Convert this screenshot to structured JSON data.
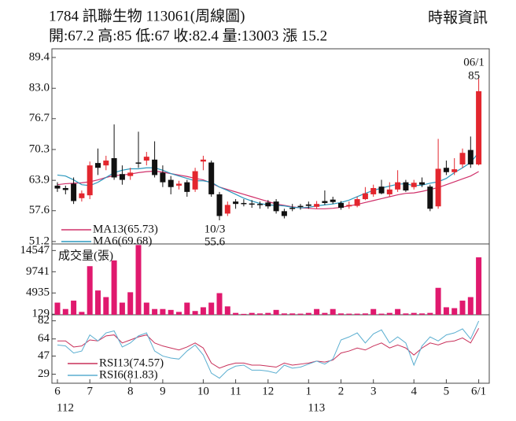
{
  "header": {
    "title": "1784  訊聯生物 113061(周線圖)",
    "subtitle": "開:67.2 高:85 低:67 收:82.4 量:13003 漲 15.2",
    "source": "時報資訊"
  },
  "chart_data": [
    {
      "type": "candlestick",
      "up_color": "#e3262e",
      "down_color": "#111111",
      "open": [
        62.8,
        62.3,
        63.2,
        60.2,
        60.8,
        67.5,
        67.0,
        68.5,
        65.2,
        64.8,
        67.6,
        68.0,
        68.2,
        65.5,
        64.0,
        62.8,
        63.5,
        62.0,
        67.8,
        67.6,
        61.0,
        57.0,
        59.5,
        59.2,
        59.1,
        59.0,
        59.3,
        59.5,
        57.5,
        58.2,
        58.6,
        58.9,
        58.4,
        59.6,
        59.9,
        59.2,
        58.5,
        58.6,
        60.0,
        61.0,
        62.6,
        61.0,
        62.0,
        63.5,
        62.5,
        63.5,
        62.6,
        58.5,
        66.5,
        65.6,
        67.2,
        70.2,
        67.2
      ],
      "high": [
        63.5,
        62.8,
        64.5,
        61.8,
        67.8,
        70.5,
        69.0,
        75.5,
        67.0,
        66.5,
        74.0,
        69.8,
        72.0,
        67.0,
        64.8,
        63.8,
        64.0,
        66.5,
        69.0,
        68.0,
        61.5,
        59.5,
        60.0,
        60.0,
        59.8,
        59.5,
        59.8,
        60.0,
        58.0,
        59.0,
        59.0,
        59.5,
        59.6,
        61.8,
        60.5,
        59.6,
        59.5,
        60.5,
        62.5,
        63.0,
        64.0,
        63.5,
        66.0,
        64.0,
        64.0,
        64.5,
        63.0,
        72.5,
        68.0,
        68.5,
        70.5,
        73.0,
        85
      ],
      "low": [
        61.5,
        61.0,
        59.0,
        59.5,
        60.0,
        65.0,
        66.0,
        64.0,
        63.0,
        64.0,
        66.5,
        67.0,
        64.5,
        62.5,
        61.0,
        62.0,
        60.5,
        61.5,
        66.0,
        60.5,
        55.6,
        56.5,
        58.0,
        58.5,
        58.2,
        58.0,
        58.0,
        57.0,
        56.0,
        57.5,
        57.8,
        58.0,
        58.0,
        58.8,
        59.0,
        57.8,
        58.0,
        58.3,
        59.8,
        60.5,
        61.0,
        60.5,
        61.5,
        61.5,
        62.0,
        62.5,
        57.5,
        58.0,
        65.0,
        65.0,
        66.5,
        66.5,
        67
      ],
      "close": [
        62.2,
        61.9,
        59.6,
        61.2,
        67.0,
        66.5,
        68.0,
        64.5,
        64.0,
        65.5,
        67.4,
        68.8,
        65.0,
        63.5,
        62.5,
        63.2,
        61.5,
        65.8,
        68.2,
        61.0,
        56.5,
        58.8,
        59.0,
        59.0,
        58.9,
        58.8,
        58.5,
        57.5,
        56.5,
        58.0,
        58.4,
        58.6,
        59.0,
        59.2,
        59.4,
        58.2,
        58.8,
        60.0,
        61.2,
        62.3,
        61.2,
        62.0,
        63.5,
        61.8,
        63.4,
        63.0,
        58.0,
        66.3,
        65.6,
        66.2,
        69.6,
        67.2,
        82.4
      ],
      "series": [
        {
          "name": "MA13(65.73)",
          "color": "#d0306a",
          "values": [
            63.0,
            63.2,
            63.3,
            63.4,
            63.6,
            64.0,
            64.5,
            64.9,
            65.0,
            65.2,
            65.5,
            65.7,
            65.8,
            65.6,
            65.3,
            65.0,
            64.7,
            64.3,
            64.0,
            63.3,
            62.5,
            62.0,
            61.5,
            61.0,
            60.5,
            60.0,
            59.5,
            59.0,
            58.7,
            58.4,
            58.2,
            58.1,
            58.0,
            58.0,
            58.1,
            58.3,
            58.6,
            58.9,
            59.3,
            59.7,
            60.1,
            60.5,
            60.9,
            61.2,
            61.3,
            61.6,
            62.0,
            62.4,
            63.0,
            63.6,
            64.2,
            64.8,
            65.73
          ]
        },
        {
          "name": "MA6(69.68)",
          "color": "#2a98bd",
          "values": [
            65.0,
            64.8,
            64.0,
            63.0,
            62.8,
            63.5,
            64.5,
            65.5,
            66.0,
            66.3,
            66.3,
            66.5,
            66.5,
            66.0,
            65.3,
            64.8,
            64.3,
            63.8,
            63.8,
            63.5,
            62.5,
            61.8,
            61.0,
            60.2,
            59.6,
            59.1,
            58.8,
            58.7,
            58.6,
            58.3,
            58.2,
            58.3,
            58.6,
            58.8,
            59.0,
            59.3,
            59.8,
            60.5,
            61.2,
            61.8,
            62.3,
            62.7,
            63.1,
            63.2,
            62.8,
            62.9,
            63.3,
            63.6,
            64.3,
            65.5,
            66.5,
            67.6,
            69.68
          ]
        }
      ],
      "ylim": [
        50.7,
        91.2
      ],
      "yticks": [
        89.4,
        {
          "value": 83.0,
          "label": "83.0"
        },
        76.7,
        70.3,
        63.9,
        57.6,
        51.2
      ],
      "annotations": [
        {
          "date": "06/1",
          "value": 85
        },
        {
          "date": "10/3",
          "value": 55.6
        }
      ]
    },
    {
      "type": "bar",
      "title": "成交量(張)",
      "color": "#e0196e",
      "values": [
        2750,
        1300,
        3200,
        650,
        11000,
        5500,
        4000,
        12300,
        2750,
        5100,
        15800,
        2750,
        1300,
        1300,
        1100,
        650,
        2750,
        850,
        1700,
        2750,
        4900,
        1900,
        420,
        200,
        420,
        300,
        420,
        1100,
        300,
        300,
        250,
        420,
        1300,
        420,
        1300,
        300,
        250,
        250,
        300,
        1300,
        250,
        420,
        1300,
        300,
        420,
        300,
        420,
        6100,
        1700,
        1500,
        3200,
        4000,
        13003
      ],
      "ylim": [
        0,
        15500
      ],
      "yticks": [
        14547,
        9741,
        4935,
        129
      ]
    },
    {
      "type": "line",
      "series": [
        {
          "name": "RSI13(74.57)",
          "color": "#c8305a",
          "values": [
            62,
            62,
            56,
            57,
            63,
            62,
            67,
            68,
            60,
            63,
            66,
            68,
            60,
            57,
            55,
            53,
            56,
            60,
            55,
            40,
            35,
            38,
            40,
            40,
            38,
            38,
            37,
            36,
            40,
            38,
            39,
            40,
            42,
            41,
            43,
            50,
            52,
            55,
            53,
            57,
            60,
            55,
            58,
            55,
            48,
            55,
            60,
            58,
            61,
            62,
            65,
            60,
            74.57
          ]
        },
        {
          "name": "RSI6(81.83)",
          "color": "#5aaed0",
          "values": [
            58,
            57,
            50,
            52,
            68,
            62,
            70,
            72,
            56,
            60,
            67,
            70,
            52,
            47,
            45,
            44,
            52,
            58,
            48,
            30,
            25,
            33,
            37,
            38,
            33,
            33,
            32,
            30,
            38,
            35,
            36,
            39,
            42,
            39,
            44,
            63,
            66,
            70,
            60,
            69,
            73,
            60,
            66,
            60,
            38,
            57,
            66,
            62,
            68,
            70,
            74,
            64,
            81.83
          ]
        }
      ],
      "ylim": [
        20,
        88
      ],
      "yticks": [
        82,
        64,
        47,
        29
      ],
      "xticks": [
        {
          "value": 0,
          "label": "6"
        },
        {
          "value": 4,
          "label": "7"
        },
        {
          "value": 9,
          "label": "8"
        },
        {
          "value": 13,
          "label": "9"
        },
        {
          "value": 18,
          "label": "10"
        },
        {
          "value": 22,
          "label": "11"
        },
        {
          "value": 26,
          "label": "12"
        },
        {
          "value": 31,
          "label": "1"
        },
        {
          "value": 35,
          "label": "2"
        },
        {
          "value": 39,
          "label": "3"
        },
        {
          "value": 44,
          "label": "4"
        },
        {
          "value": 48,
          "label": "5"
        },
        {
          "value": 52,
          "label": "6/1"
        }
      ],
      "xtick_years": [
        {
          "value": 0,
          "label": "112"
        },
        {
          "value": 31,
          "label": "113"
        }
      ]
    }
  ]
}
